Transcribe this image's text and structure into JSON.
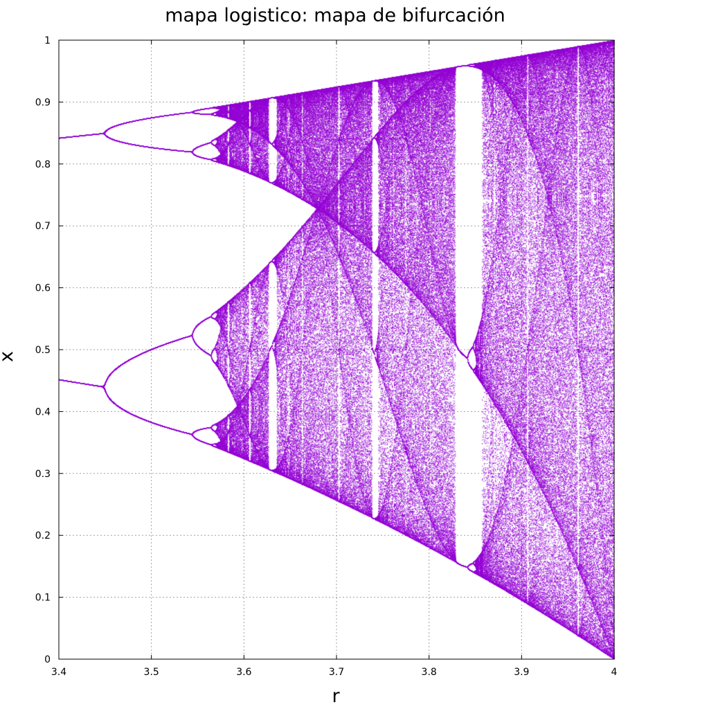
{
  "chart_data": {
    "type": "scatter",
    "title": "mapa logistico: mapa de bifurcación",
    "xlabel": "r",
    "ylabel": "x",
    "xlim": [
      3.4,
      4.0
    ],
    "ylim": [
      0,
      1
    ],
    "x_ticks": [
      "3.4",
      "3.5",
      "3.6",
      "3.7",
      "3.8",
      "3.9",
      "4"
    ],
    "y_ticks": [
      "0",
      "0.1",
      "0.2",
      "0.3",
      "0.4",
      "0.5",
      "0.6",
      "0.7",
      "0.8",
      "0.9",
      "1"
    ],
    "grid": true,
    "legend": "none",
    "point_color": "#9400d3",
    "series": [
      {
        "function": "x_next = r * x * (1 - x)",
        "x_start": 0.5,
        "r_min": 3.4,
        "r_max": 4.0,
        "r_samples": 1600,
        "transient_iterations": 500,
        "plotted_iterations": 300
      }
    ]
  }
}
